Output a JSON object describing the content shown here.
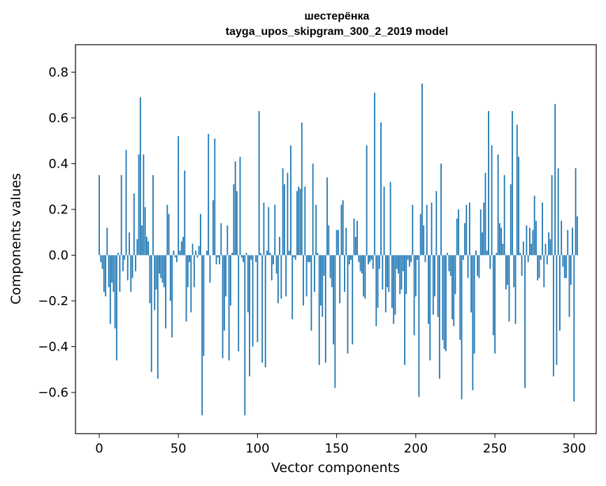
{
  "chart_data": {
    "type": "bar",
    "title_line1": "шестерёнка",
    "title_line2": "tayga_upos_skipgram_300_2_2019 model",
    "xlabel": "Vector components",
    "ylabel": "Components values",
    "xlim": [
      -15,
      314
    ],
    "ylim": [
      -0.78,
      0.92
    ],
    "xticks": [
      0,
      50,
      100,
      150,
      200,
      250,
      300
    ],
    "yticks": [
      -0.6,
      -0.4,
      -0.2,
      0.0,
      0.2,
      0.4,
      0.6,
      0.8
    ],
    "ytick_labels": [
      "−0.6",
      "−0.4",
      "−0.2",
      "0.0",
      "0.2",
      "0.4",
      "0.6",
      "0.8"
    ],
    "bar_color": "#1f77b4",
    "series": [
      {
        "name": "шестерёнка",
        "values": [
          0.35,
          -0.03,
          -0.06,
          -0.16,
          -0.18,
          0.12,
          -0.14,
          -0.3,
          -0.12,
          -0.16,
          -0.32,
          -0.46,
          0.01,
          -0.16,
          0.35,
          -0.07,
          -0.02,
          0.46,
          -0.11,
          0.1,
          -0.16,
          -0.1,
          0.27,
          -0.07,
          0.07,
          0.44,
          0.69,
          0.13,
          0.44,
          0.21,
          0.08,
          0.06,
          -0.21,
          -0.51,
          0.35,
          -0.24,
          -0.15,
          -0.54,
          -0.08,
          -0.1,
          -0.12,
          -0.14,
          -0.32,
          0.22,
          0.18,
          -0.2,
          -0.36,
          0.02,
          -0.01,
          -0.03,
          0.52,
          0.02,
          0.06,
          0.08,
          0.37,
          -0.29,
          -0.14,
          -0.03,
          -0.25,
          0.05,
          -0.14,
          0.02,
          -0.01,
          0.04,
          0.18,
          -0.7,
          -0.44,
          0.0,
          0.02,
          0.53,
          -0.12,
          0.0,
          0.24,
          0.51,
          -0.04,
          -0.01,
          -0.04,
          0.14,
          -0.45,
          -0.33,
          -0.18,
          0.13,
          -0.46,
          -0.22,
          0.01,
          0.31,
          0.41,
          0.28,
          -0.42,
          0.43,
          -0.01,
          -0.03,
          -0.7,
          0.01,
          -0.25,
          -0.53,
          -0.02,
          -0.4,
          0.0,
          -0.03,
          -0.38,
          0.63,
          0.01,
          -0.47,
          0.23,
          -0.49,
          0.02,
          0.21,
          0.01,
          -0.11,
          -0.04,
          0.22,
          -0.08,
          -0.21,
          0.08,
          -0.19,
          0.38,
          0.31,
          -0.18,
          0.36,
          0.02,
          0.48,
          -0.28,
          -0.01,
          -0.02,
          0.28,
          0.3,
          0.29,
          0.58,
          -0.22,
          0.3,
          -0.18,
          -0.03,
          -0.03,
          -0.33,
          0.4,
          -0.16,
          0.22,
          0.01,
          -0.48,
          -0.22,
          -0.27,
          -0.09,
          -0.47,
          0.34,
          0.13,
          -0.1,
          -0.14,
          -0.39,
          -0.58,
          0.11,
          0.11,
          -0.21,
          0.22,
          0.24,
          -0.16,
          0.12,
          -0.43,
          -0.04,
          -0.02,
          -0.39,
          0.16,
          0.08,
          0.15,
          -0.03,
          -0.07,
          -0.08,
          -0.18,
          -0.19,
          0.48,
          -0.04,
          -0.03,
          -0.02,
          -0.06,
          0.71,
          -0.31,
          -0.23,
          -0.06,
          0.58,
          -0.15,
          0.3,
          -0.25,
          -0.14,
          -0.16,
          0.32,
          -0.23,
          -0.3,
          -0.26,
          -0.06,
          -0.08,
          -0.17,
          -0.15,
          -0.07,
          -0.48,
          -0.17,
          -0.02,
          -0.05,
          -0.03,
          0.22,
          -0.35,
          -0.18,
          -0.02,
          -0.62,
          0.18,
          0.75,
          0.13,
          -0.03,
          0.22,
          -0.3,
          -0.46,
          0.23,
          -0.26,
          -0.18,
          0.28,
          -0.27,
          -0.54,
          0.4,
          -0.37,
          -0.41,
          -0.42,
          0.01,
          -0.07,
          -0.09,
          -0.28,
          -0.31,
          -0.17,
          0.16,
          0.2,
          -0.37,
          -0.63,
          -0.02,
          0.14,
          0.22,
          -0.1,
          0.23,
          -0.25,
          -0.59,
          -0.43,
          0.02,
          -0.09,
          -0.1,
          0.2,
          0.1,
          0.23,
          0.36,
          0.02,
          0.63,
          -0.06,
          0.48,
          -0.35,
          -0.43,
          0.01,
          0.44,
          0.14,
          0.12,
          0.05,
          0.35,
          -0.15,
          -0.13,
          -0.29,
          0.31,
          0.63,
          -0.14,
          -0.3,
          0.57,
          0.43,
          0.01,
          -0.09,
          0.06,
          -0.58,
          0.13,
          -0.03,
          0.12,
          0.05,
          0.11,
          0.26,
          0.15,
          -0.11,
          -0.1,
          -0.02,
          0.23,
          -0.14,
          0.05,
          -0.04,
          0.1,
          0.07,
          0.35,
          -0.53,
          0.66,
          -0.48,
          0.38,
          -0.33,
          0.15,
          -0.05,
          -0.1,
          -0.1,
          0.11,
          -0.27,
          -0.13,
          0.12,
          -0.64,
          0.38,
          0.17
        ]
      }
    ]
  }
}
